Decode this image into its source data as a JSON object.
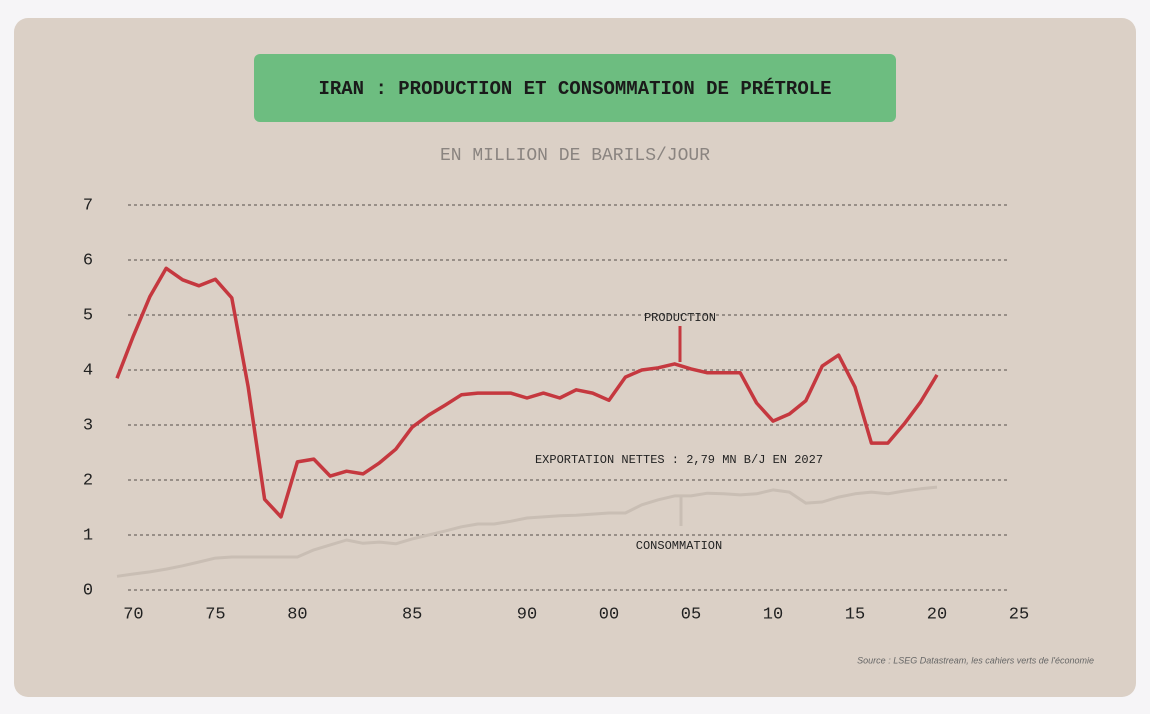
{
  "chart_data": {
    "type": "line",
    "title": "IRAN : PRODUCTION ET CONSOMMATION DE PRÉTROLE",
    "subtitle": "EN MILLION DE BARILS/JOUR",
    "source": "Source : LSEG Datastream, les cahiers verts de l'économie",
    "categories": [
      null,
      "70",
      null,
      null,
      null,
      null,
      "75",
      null,
      null,
      null,
      null,
      "80",
      null,
      null,
      null,
      null,
      null,
      null,
      "85",
      null,
      null,
      null,
      null,
      null,
      null,
      "90",
      null,
      null,
      null,
      null,
      "00",
      null,
      null,
      null,
      null,
      "05",
      null,
      null,
      null,
      null,
      "10",
      null,
      null,
      null,
      null,
      "15",
      null,
      null,
      null,
      null,
      "20",
      null,
      null,
      null,
      null,
      "25"
    ],
    "series": [
      {
        "name": "PRODUCTION",
        "color": "#c5383f",
        "values": [
          3.85,
          4.62,
          5.33,
          5.85,
          5.64,
          5.53,
          5.65,
          5.31,
          3.69,
          1.65,
          1.33,
          2.33,
          2.38,
          2.07,
          2.16,
          2.11,
          2.31,
          2.56,
          2.96,
          3.18,
          3.36,
          3.55,
          3.58,
          3.58,
          3.58,
          3.49,
          3.58,
          3.49,
          3.64,
          3.58,
          3.45,
          3.87,
          4.0,
          4.04,
          4.11,
          4.02,
          3.95,
          3.95,
          3.95,
          3.4,
          3.07,
          3.2,
          3.44,
          4.07,
          4.27,
          3.69,
          2.67,
          2.67,
          3.02,
          3.42,
          3.91,
          null,
          null,
          null,
          null,
          null
        ]
      },
      {
        "name": "CONSOMMATION",
        "color": "#c9beb4",
        "values": [
          0.25,
          0.29,
          0.33,
          0.38,
          0.44,
          0.51,
          0.58,
          0.6,
          0.6,
          0.6,
          0.6,
          0.6,
          0.73,
          0.82,
          0.91,
          0.85,
          0.87,
          0.84,
          0.93,
          1.0,
          1.07,
          1.15,
          1.2,
          1.2,
          1.25,
          1.31,
          1.33,
          1.35,
          1.36,
          1.38,
          1.4,
          1.4,
          1.55,
          1.64,
          1.71,
          1.71,
          1.76,
          1.75,
          1.73,
          1.75,
          1.82,
          1.78,
          1.58,
          1.6,
          1.69,
          1.75,
          1.78,
          1.75,
          1.8,
          1.84,
          1.87,
          null,
          null,
          null,
          null,
          null
        ]
      }
    ],
    "annotation": "EXPORTATION NETTES : 2,79 MN B/J EN 2027",
    "ylim": [
      0,
      7
    ],
    "yticks": [
      0,
      1,
      2,
      3,
      4,
      5,
      6,
      7
    ],
    "grid": true
  }
}
